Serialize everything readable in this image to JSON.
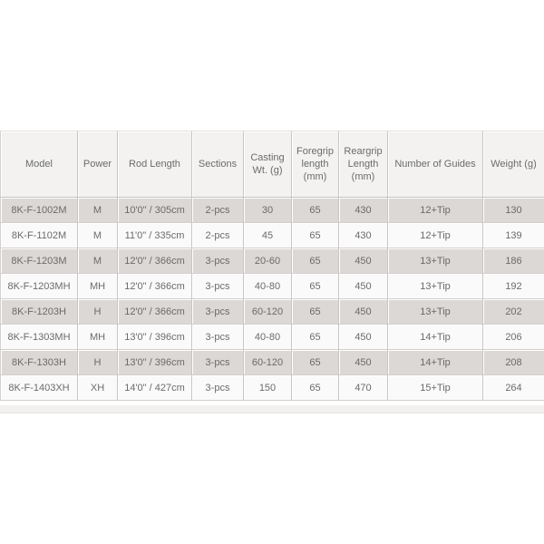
{
  "colors": {
    "header_bg": "#f3f2f1",
    "row_odd_bg": "#dbd8d5",
    "row_even_bg": "#fbfafa",
    "border": "#c8c5c3",
    "text": "#6b6b6b",
    "footer_band_bg": "#f2f1ef"
  },
  "table": {
    "headers": [
      "Model",
      "Power",
      "Rod Length",
      "Sections",
      "Casting Wt. (g)",
      "Foregrip length (mm)",
      "Reargrip Length (mm)",
      "Number of Guides",
      "Weight (g)"
    ],
    "rows": [
      {
        "model": "8K-F-1002M",
        "power": "M",
        "rod_length": "10'0\" / 305cm",
        "sections": "2-pcs",
        "casting_wt": "30",
        "foregrip_length_mm": "65",
        "reargrip_length_mm": "430",
        "guides": "12+Tip",
        "weight_g": "130"
      },
      {
        "model": "8K-F-1102M",
        "power": "M",
        "rod_length": "11'0\" / 335cm",
        "sections": "2-pcs",
        "casting_wt": "45",
        "foregrip_length_mm": "65",
        "reargrip_length_mm": "430",
        "guides": "12+Tip",
        "weight_g": "139"
      },
      {
        "model": "8K-F-1203M",
        "power": "M",
        "rod_length": "12'0\" / 366cm",
        "sections": "3-pcs",
        "casting_wt": "20-60",
        "foregrip_length_mm": "65",
        "reargrip_length_mm": "450",
        "guides": "13+Tip",
        "weight_g": "186"
      },
      {
        "model": "8K-F-1203MH",
        "power": "MH",
        "rod_length": "12'0\" / 366cm",
        "sections": "3-pcs",
        "casting_wt": "40-80",
        "foregrip_length_mm": "65",
        "reargrip_length_mm": "450",
        "guides": "13+Tip",
        "weight_g": "192"
      },
      {
        "model": "8K-F-1203H",
        "power": "H",
        "rod_length": "12'0\" / 366cm",
        "sections": "3-pcs",
        "casting_wt": "60-120",
        "foregrip_length_mm": "65",
        "reargrip_length_mm": "450",
        "guides": "13+Tip",
        "weight_g": "202"
      },
      {
        "model": "8K-F-1303MH",
        "power": "MH",
        "rod_length": "13'0\" / 396cm",
        "sections": "3-pcs",
        "casting_wt": "40-80",
        "foregrip_length_mm": "65",
        "reargrip_length_mm": "450",
        "guides": "14+Tip",
        "weight_g": "206"
      },
      {
        "model": "8K-F-1303H",
        "power": "H",
        "rod_length": "13'0\" / 396cm",
        "sections": "3-pcs",
        "casting_wt": "60-120",
        "foregrip_length_mm": "65",
        "reargrip_length_mm": "450",
        "guides": "14+Tip",
        "weight_g": "208"
      },
      {
        "model": "8K-F-1403XH",
        "power": "XH",
        "rod_length": "14'0\" / 427cm",
        "sections": "3-pcs",
        "casting_wt": "150",
        "foregrip_length_mm": "65",
        "reargrip_length_mm": "470",
        "guides": "15+Tip",
        "weight_g": "264"
      }
    ]
  },
  "chart_data": {
    "type": "table",
    "columns": [
      "Model",
      "Power",
      "Rod Length",
      "Sections",
      "Casting Wt. (g)",
      "Foregrip length (mm)",
      "Reargrip Length (mm)",
      "Number of Guides",
      "Weight (g)"
    ],
    "rows": [
      [
        "8K-F-1002M",
        "M",
        "10'0\" / 305cm",
        "2-pcs",
        "30",
        "65",
        "430",
        "12+Tip",
        "130"
      ],
      [
        "8K-F-1102M",
        "M",
        "11'0\" / 335cm",
        "2-pcs",
        "45",
        "65",
        "430",
        "12+Tip",
        "139"
      ],
      [
        "8K-F-1203M",
        "M",
        "12'0\" / 366cm",
        "3-pcs",
        "20-60",
        "65",
        "450",
        "13+Tip",
        "186"
      ],
      [
        "8K-F-1203MH",
        "MH",
        "12'0\" / 366cm",
        "3-pcs",
        "40-80",
        "65",
        "450",
        "13+Tip",
        "192"
      ],
      [
        "8K-F-1203H",
        "H",
        "12'0\" / 366cm",
        "3-pcs",
        "60-120",
        "65",
        "450",
        "13+Tip",
        "202"
      ],
      [
        "8K-F-1303MH",
        "MH",
        "13'0\" / 396cm",
        "3-pcs",
        "40-80",
        "65",
        "450",
        "14+Tip",
        "206"
      ],
      [
        "8K-F-1303H",
        "H",
        "13'0\" / 396cm",
        "3-pcs",
        "60-120",
        "65",
        "450",
        "14+Tip",
        "208"
      ],
      [
        "8K-F-1403XH",
        "XH",
        "14'0\" / 427cm",
        "3-pcs",
        "150",
        "65",
        "470",
        "15+Tip",
        "264"
      ]
    ]
  }
}
